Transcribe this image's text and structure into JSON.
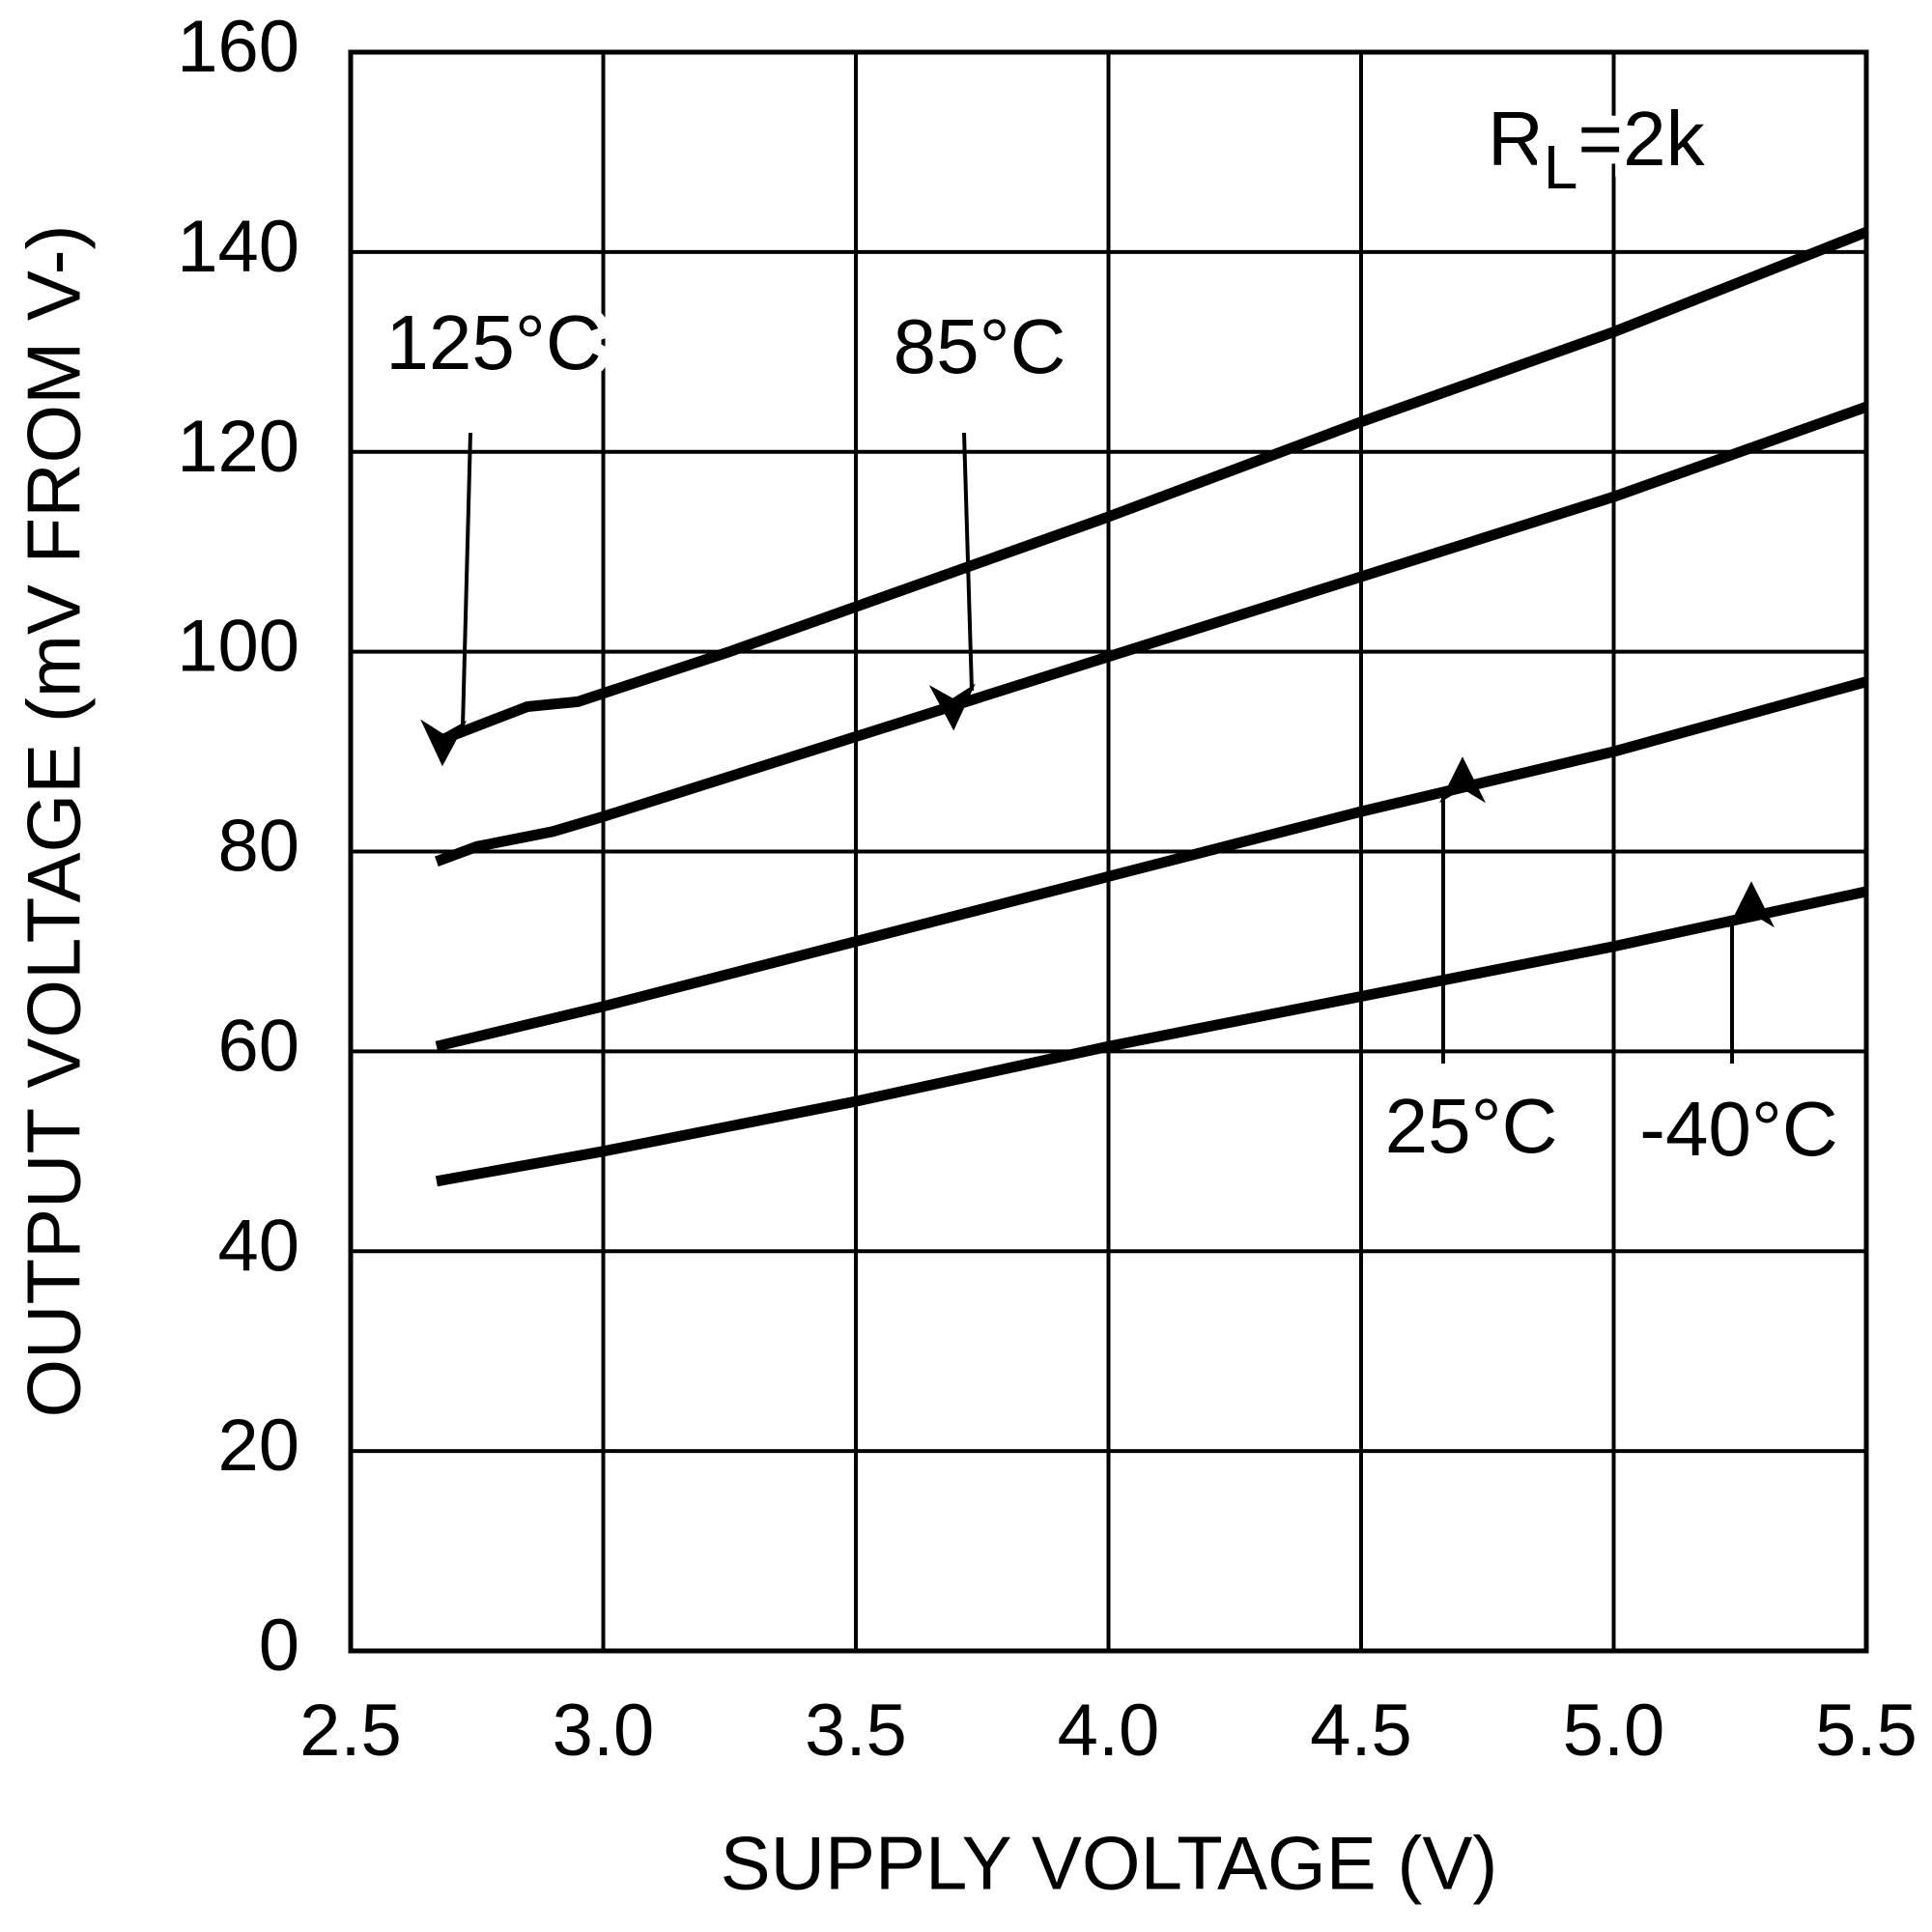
{
  "chart_data": {
    "type": "line",
    "xlabel": "SUPPLY VOLTAGE (V)",
    "ylabel": "OUTPUT VOLTAGE (mV FROM V-)",
    "load_label": {
      "main": "R",
      "subscript": "L",
      "suffix": "=2k"
    },
    "xlim": [
      2.5,
      5.5
    ],
    "xticks": [
      2.5,
      {
        "value": 3,
        "label": "3.0"
      },
      3.5,
      {
        "value": 4,
        "label": "4.0"
      },
      4.5,
      {
        "value": 5,
        "label": "5.0"
      },
      5.5
    ],
    "ylim": [
      0,
      160
    ],
    "yticks": [
      0,
      20,
      40,
      60,
      80,
      100,
      120,
      140,
      160
    ],
    "grid": true,
    "series": [
      {
        "name": "125°C",
        "color": "#000000",
        "x": [
          2.67,
          2.85,
          2.95,
          3.25,
          3.5,
          4.0,
          4.5,
          5.0,
          5.5
        ],
        "values": [
          91,
          94.5,
          95,
          100,
          104.5,
          113.5,
          123,
          132,
          142
        ]
      },
      {
        "name": "85°C",
        "color": "#000000",
        "x": [
          2.67,
          2.75,
          2.9,
          3.0,
          3.5,
          4.0,
          4.5,
          5.0,
          5.5
        ],
        "values": [
          79,
          80.5,
          82,
          83.5,
          91.5,
          99.5,
          107.5,
          115.5,
          124.5
        ]
      },
      {
        "name": "25°C",
        "color": "#000000",
        "x": [
          2.67,
          3.0,
          3.5,
          4.0,
          4.5,
          5.0,
          5.5
        ],
        "values": [
          60.5,
          64.5,
          71,
          77.5,
          84,
          90,
          97
        ]
      },
      {
        "name": "-40°C",
        "color": "#000000",
        "x": [
          2.67,
          3.0,
          3.5,
          4.0,
          4.5,
          5.0,
          5.5
        ],
        "values": [
          47,
          50,
          55,
          60.5,
          65.5,
          70.5,
          76
        ]
      }
    ]
  }
}
